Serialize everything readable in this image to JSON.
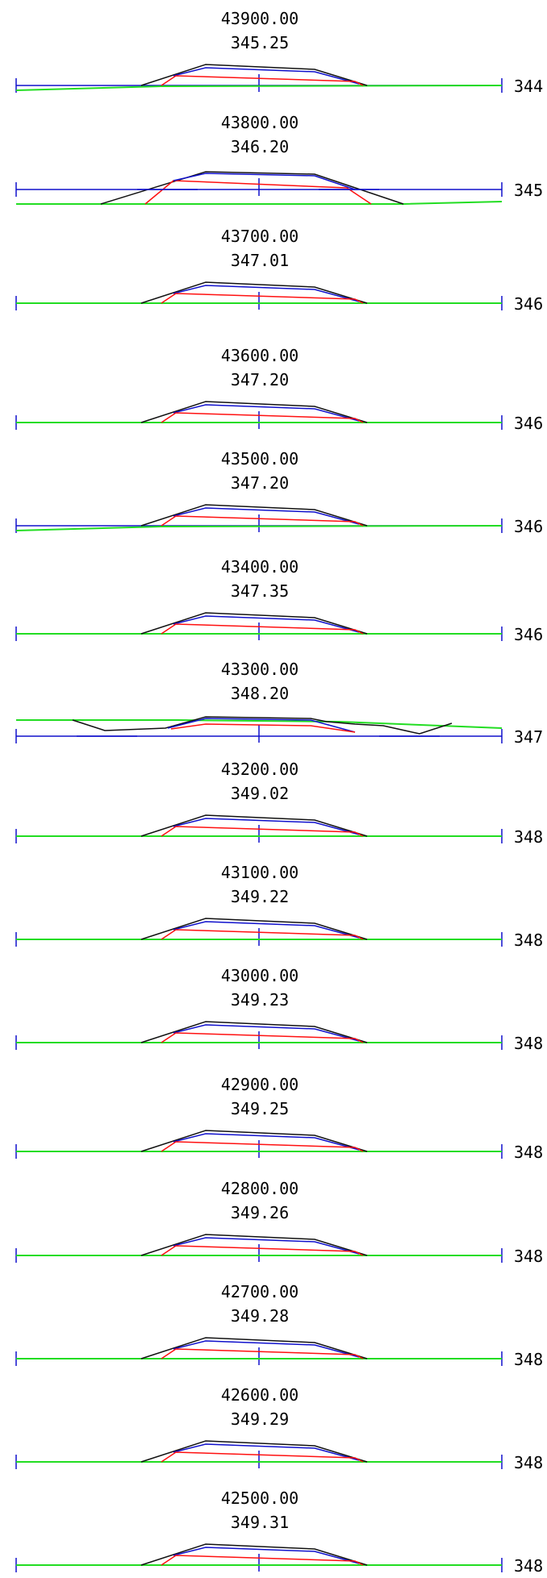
{
  "colors": {
    "ground": "#22dd22",
    "design": "#1010cc",
    "subgrade": "#ff1010",
    "outline": "#111111",
    "axis": "#1010cc",
    "text": "#000000"
  },
  "sections": [
    {
      "station": "43900.00",
      "elevation": "345.25",
      "datum": "344",
      "variant": "sloped_ground"
    },
    {
      "station": "43800.00",
      "elevation": "346.20",
      "datum": "345",
      "variant": "wide_low_ground"
    },
    {
      "station": "43700.00",
      "elevation": "347.01",
      "datum": "346",
      "variant": "normal"
    },
    {
      "station": "43600.00",
      "elevation": "347.20",
      "datum": "346",
      "variant": "normal"
    },
    {
      "station": "43500.00",
      "elevation": "347.20",
      "datum": "346",
      "variant": "sloped_ground"
    },
    {
      "station": "43400.00",
      "elevation": "347.35",
      "datum": "346",
      "variant": "normal"
    },
    {
      "station": "43300.00",
      "elevation": "348.20",
      "datum": "347",
      "variant": "cut"
    },
    {
      "station": "43200.00",
      "elevation": "349.02",
      "datum": "348",
      "variant": "normal"
    },
    {
      "station": "43100.00",
      "elevation": "349.22",
      "datum": "348",
      "variant": "normal"
    },
    {
      "station": "43000.00",
      "elevation": "349.23",
      "datum": "348",
      "variant": "normal"
    },
    {
      "station": "42900.00",
      "elevation": "349.25",
      "datum": "348",
      "variant": "normal"
    },
    {
      "station": "42800.00",
      "elevation": "349.26",
      "datum": "348",
      "variant": "normal"
    },
    {
      "station": "42700.00",
      "elevation": "349.28",
      "datum": "348",
      "variant": "normal"
    },
    {
      "station": "42600.00",
      "elevation": "349.29",
      "datum": "348",
      "variant": "normal"
    },
    {
      "station": "42500.00",
      "elevation": "349.31",
      "datum": "348",
      "variant": "normal"
    }
  ]
}
